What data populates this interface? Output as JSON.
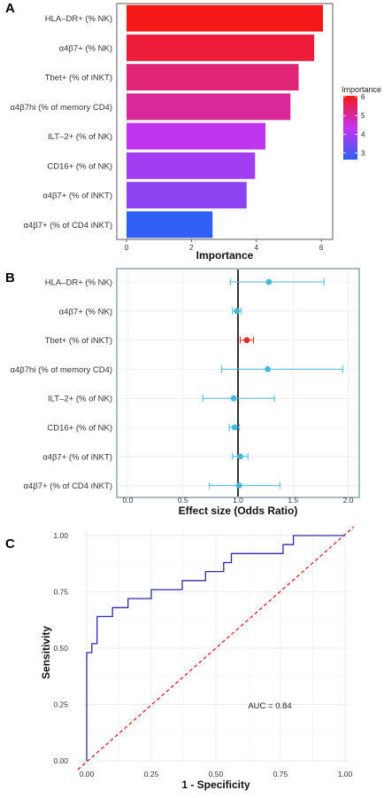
{
  "chart_data": [
    {
      "panel": "A",
      "type": "bar",
      "orientation": "horizontal",
      "categories": [
        "HLA–DR+ (% NK)",
        "α4β7+ (% NK)",
        "Tbet+ (% of iNKT)",
        "α4β7hi (% of memory CD4)",
        "ILT–2+ (% of NK)",
        "CD16+ (% of NK)",
        "α4β7+ (% of iNKT)",
        "α4β7+ (% of CD4 iNKT)"
      ],
      "values": [
        6.05,
        5.78,
        5.3,
        5.05,
        4.28,
        3.96,
        3.7,
        2.65
      ],
      "xlabel": "Importance",
      "xlim": [
        -0.3,
        6.35
      ],
      "xticks": [
        "0",
        "2",
        "4",
        "6"
      ],
      "legend": {
        "title": "Importance",
        "ticks": [
          "6",
          "5",
          "4",
          "3"
        ],
        "low_color": "#2f5ff5",
        "mid_color": "#c533f0",
        "high_color": "#f51818",
        "position": "right"
      }
    },
    {
      "panel": "B",
      "type": "scatter",
      "subtype": "forest",
      "categories": [
        "HLA–DR+ (% NK)",
        "α4β7+ (% NK)",
        "Tbet+ (% of iNKT)",
        "α4β7hi (% of memory CD4)",
        "ILT–2+ (% of NK)",
        "CD16+ (% of NK)",
        "α4β7+ (% of iNKT)",
        "α4β7+ (% of CD4 iNKT)"
      ],
      "estimate": [
        1.28,
        0.99,
        1.08,
        1.27,
        0.96,
        0.97,
        1.02,
        1.01
      ],
      "ci_low": [
        0.93,
        0.95,
        1.02,
        0.85,
        0.68,
        0.92,
        0.95,
        0.74
      ],
      "ci_high": [
        1.78,
        1.03,
        1.14,
        1.95,
        1.33,
        1.01,
        1.09,
        1.38
      ],
      "highlight_index": 2,
      "reference_line": 1.0,
      "xlabel": "Effect size (Odds Ratio)",
      "xlim": [
        -0.1,
        2.1
      ],
      "xticks": [
        "0.0",
        "0.5",
        "1.0",
        "1.5",
        "2.0"
      ],
      "point_color": "#45b8e0",
      "highlight_color": "#e8281e"
    },
    {
      "panel": "C",
      "type": "line",
      "subtype": "roc",
      "x": [
        0.0,
        0.0,
        0.0,
        0.02,
        0.02,
        0.04,
        0.04,
        0.1,
        0.1,
        0.16,
        0.16,
        0.25,
        0.25,
        0.37,
        0.37,
        0.46,
        0.46,
        0.53,
        0.53,
        0.56,
        0.56,
        0.76,
        0.76,
        0.8,
        0.8,
        1.0
      ],
      "y": [
        0.0,
        0.2,
        0.48,
        0.48,
        0.52,
        0.52,
        0.64,
        0.64,
        0.68,
        0.68,
        0.72,
        0.72,
        0.76,
        0.76,
        0.8,
        0.8,
        0.84,
        0.84,
        0.88,
        0.88,
        0.92,
        0.92,
        0.96,
        0.96,
        1.0,
        1.0
      ],
      "xlabel": "1 - Specificity",
      "ylabel": "Sensitivity",
      "xlim": [
        0,
        1
      ],
      "ylim": [
        0,
        1
      ],
      "xticks": [
        "0.00",
        "0.25",
        "0.50",
        "0.75",
        "1.00"
      ],
      "yticks": [
        "0.00",
        "0.25",
        "0.50",
        "0.75",
        "1.00"
      ],
      "annotation": "AUC = 0.84",
      "line_color": "#2c2caa",
      "diagonal_color": "#e02020",
      "grid": true
    }
  ]
}
